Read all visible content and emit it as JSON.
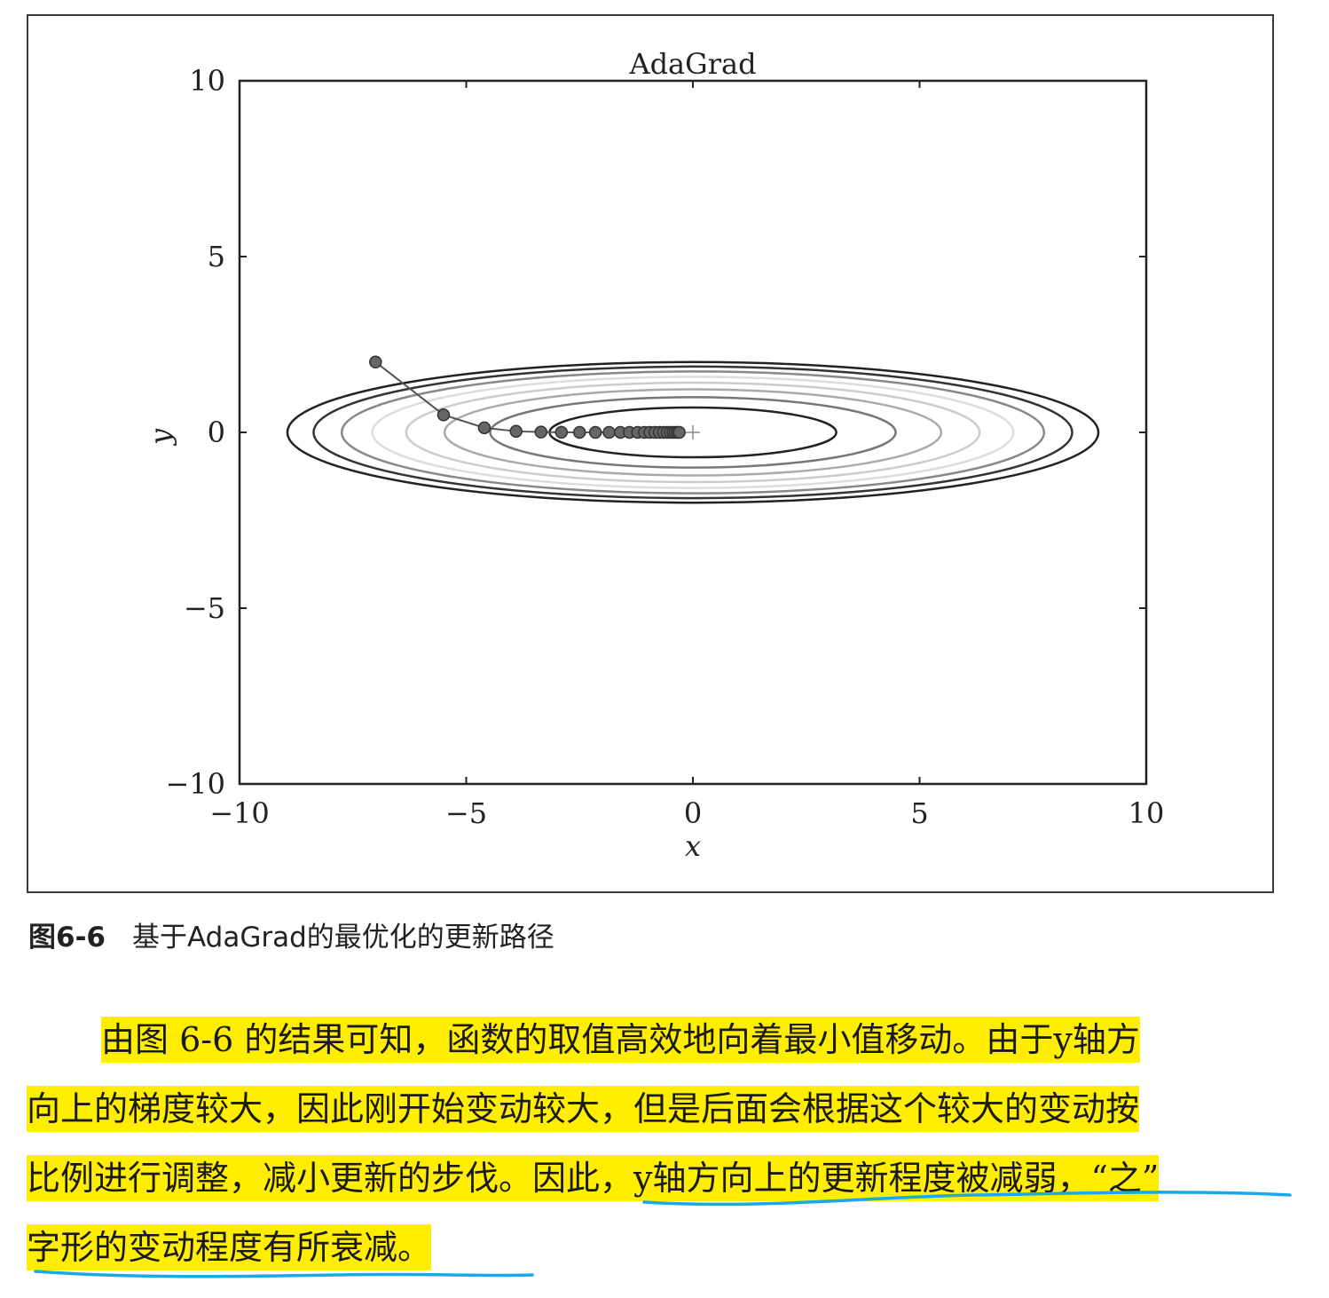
{
  "chart_data": {
    "type": "line",
    "title": "AdaGrad",
    "xlabel": "x",
    "ylabel": "y",
    "xlim": [
      -10,
      10
    ],
    "ylim": [
      -10,
      10
    ],
    "xticks": [
      -10,
      -5,
      0,
      5,
      10
    ],
    "yticks": [
      -10,
      -5,
      0,
      5,
      10
    ],
    "xtick_labels": [
      "−10",
      "−5",
      "0",
      "5",
      "10"
    ],
    "ytick_labels": [
      "−10",
      "−5",
      "0",
      "5",
      "10"
    ],
    "grid": false,
    "series": [
      {
        "x": [
          -7.0,
          -5.5,
          -4.6,
          -3.9,
          -3.35,
          -2.9,
          -2.5,
          -2.15,
          -1.85,
          -1.6,
          -1.4,
          -1.22,
          -1.07,
          -0.95,
          -0.84,
          -0.74,
          -0.65,
          -0.57,
          -0.5,
          -0.44,
          -0.39,
          -0.34,
          -0.3
        ],
        "y": [
          2.0,
          0.5,
          0.13,
          0.03,
          0.008,
          0.002,
          0.0,
          0.0,
          0.0,
          0.0,
          0.0,
          0.0,
          0.0,
          0.0,
          0.0,
          0.0,
          0.0,
          0.0,
          0.0,
          0.0,
          0.0,
          0.0,
          0.0
        ]
      }
    ],
    "contours": {
      "function": "x^2/20 + y^2",
      "levels": [
        0.5,
        1.0,
        1.5,
        2.0,
        2.5,
        3.0,
        3.5,
        4.0
      ],
      "colors": [
        "#222222",
        "#777777",
        "#aaaaaa",
        "#cccccc",
        "#dddddd",
        "#888888",
        "#333333",
        "#222222"
      ]
    }
  },
  "caption": {
    "figure_number": "图6-6",
    "text": "基于AdaGrad的最优化的更新路径"
  },
  "body": {
    "lines": [
      "由图 6-6 的结果可知，函数的取值高效地向着最小值移动。由于y轴方",
      "向上的梯度较大，因此刚开始变动较大，但是后面会根据这个较大的变动按",
      "比例进行调整，减小更新的步伐。因此，y轴方向上的更新程度被减弱，“之”",
      "字形的变动程度有所衰减。"
    ]
  },
  "colors": {
    "highlight": "#ffee00",
    "underline": "#1aa7ee",
    "path": "#555555",
    "marker": "#666666"
  }
}
